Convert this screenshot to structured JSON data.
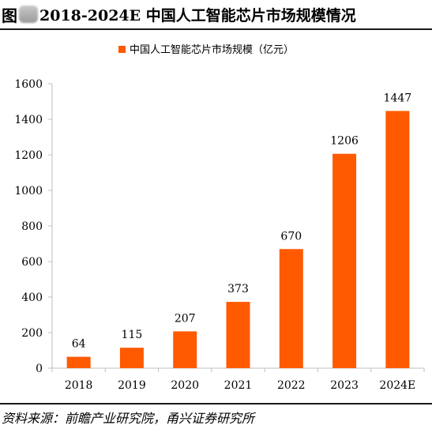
{
  "header": {
    "figure_label": "图",
    "title": "2018-2024E 中国人工智能芯片市场规模情况"
  },
  "source": {
    "text": "资料来源：前瞻产业研究院，甬兴证券研究所"
  },
  "colors": {
    "bar": "#ff5a00",
    "axis": "#bfbfbf"
  },
  "chart_data": {
    "type": "bar",
    "categories": [
      "2018",
      "2019",
      "2020",
      "2021",
      "2022",
      "2023",
      "2024E"
    ],
    "series": [
      {
        "name": "中国人工智能芯片市场规模（亿元）",
        "values": [
          64,
          115,
          207,
          373,
          670,
          1206,
          1447
        ]
      }
    ],
    "data_labels": [
      "64",
      "115",
      "207",
      "373",
      "670",
      "1206",
      "1447"
    ],
    "yticks": [
      "0",
      "200",
      "400",
      "600",
      "800",
      "1000",
      "1200",
      "1400",
      "1600"
    ],
    "ylim": [
      0,
      1600
    ],
    "xlabel": "",
    "ylabel": "",
    "grid": false,
    "legend_position": "top-center"
  }
}
